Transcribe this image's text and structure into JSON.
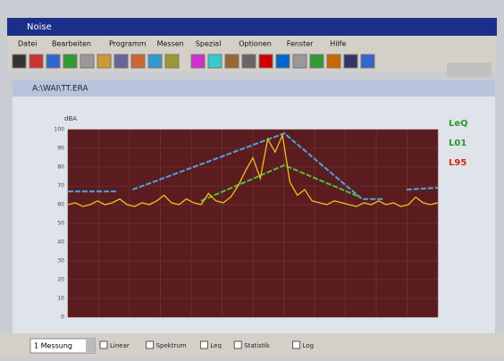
{
  "window": {
    "title": "Noise",
    "menu": [
      "Datei",
      "Bearbeiten",
      "Programm",
      "Messen",
      "Spezial",
      "Optionen",
      "Fenster",
      "Hilfe"
    ]
  },
  "document": {
    "title": "A:\\WAI\\TT.ERA"
  },
  "chart_data": {
    "type": "line",
    "ylabel": "dBA",
    "xlim": [
      0,
      100
    ],
    "ylim": [
      0,
      100
    ],
    "yticks": [
      0,
      10,
      20,
      30,
      40,
      50,
      60,
      70,
      80,
      90,
      100
    ],
    "xticks": [
      0,
      8.33,
      16.67,
      25,
      33.33,
      41.67,
      50,
      58.33,
      66.67,
      75,
      83.33,
      91.67,
      100
    ],
    "grid": true,
    "legend": "right",
    "background": "#5a1c1e",
    "series": [
      {
        "name": "LeQ",
        "color": "#4fa3e0",
        "x": [
          0,
          13,
          13,
          17.5,
          58.5,
          79.5,
          85.5,
          85.5,
          91.5,
          100
        ],
        "values": [
          67,
          67,
          null,
          68,
          98,
          63,
          63,
          null,
          68,
          69
        ]
      },
      {
        "name": "L01",
        "color": "#4fc040",
        "x": [
          36,
          58.5,
          79
        ],
        "values": [
          62,
          81,
          64
        ]
      },
      {
        "name": "L95",
        "color": "#f0c020",
        "x": [
          0,
          2,
          4,
          6,
          8,
          10,
          12,
          14,
          16,
          18,
          20,
          22,
          24,
          26,
          28,
          30,
          32,
          34,
          36,
          38,
          40,
          42,
          44,
          46,
          48,
          50,
          52,
          54,
          56,
          58,
          60,
          62,
          64,
          66,
          68,
          70,
          72,
          74,
          76,
          78,
          80,
          82,
          84,
          86,
          88,
          90,
          92,
          94,
          96,
          98,
          100
        ],
        "values": [
          60,
          61,
          59,
          60,
          62,
          60,
          61,
          63,
          60,
          59,
          61,
          60,
          62,
          65,
          61,
          60,
          63,
          61,
          60,
          66,
          62,
          61,
          64,
          70,
          78,
          85,
          74,
          95,
          88,
          97,
          72,
          65,
          68,
          62,
          61,
          60,
          62,
          61,
          60,
          59,
          61,
          60,
          62,
          60,
          61,
          59,
          60,
          64,
          61,
          60,
          61
        ]
      }
    ]
  },
  "statusbar": {
    "dropdown": "1 Messung",
    "options": [
      "Linear",
      "Spektrum",
      "Leq",
      "Statistik",
      "Log"
    ]
  }
}
